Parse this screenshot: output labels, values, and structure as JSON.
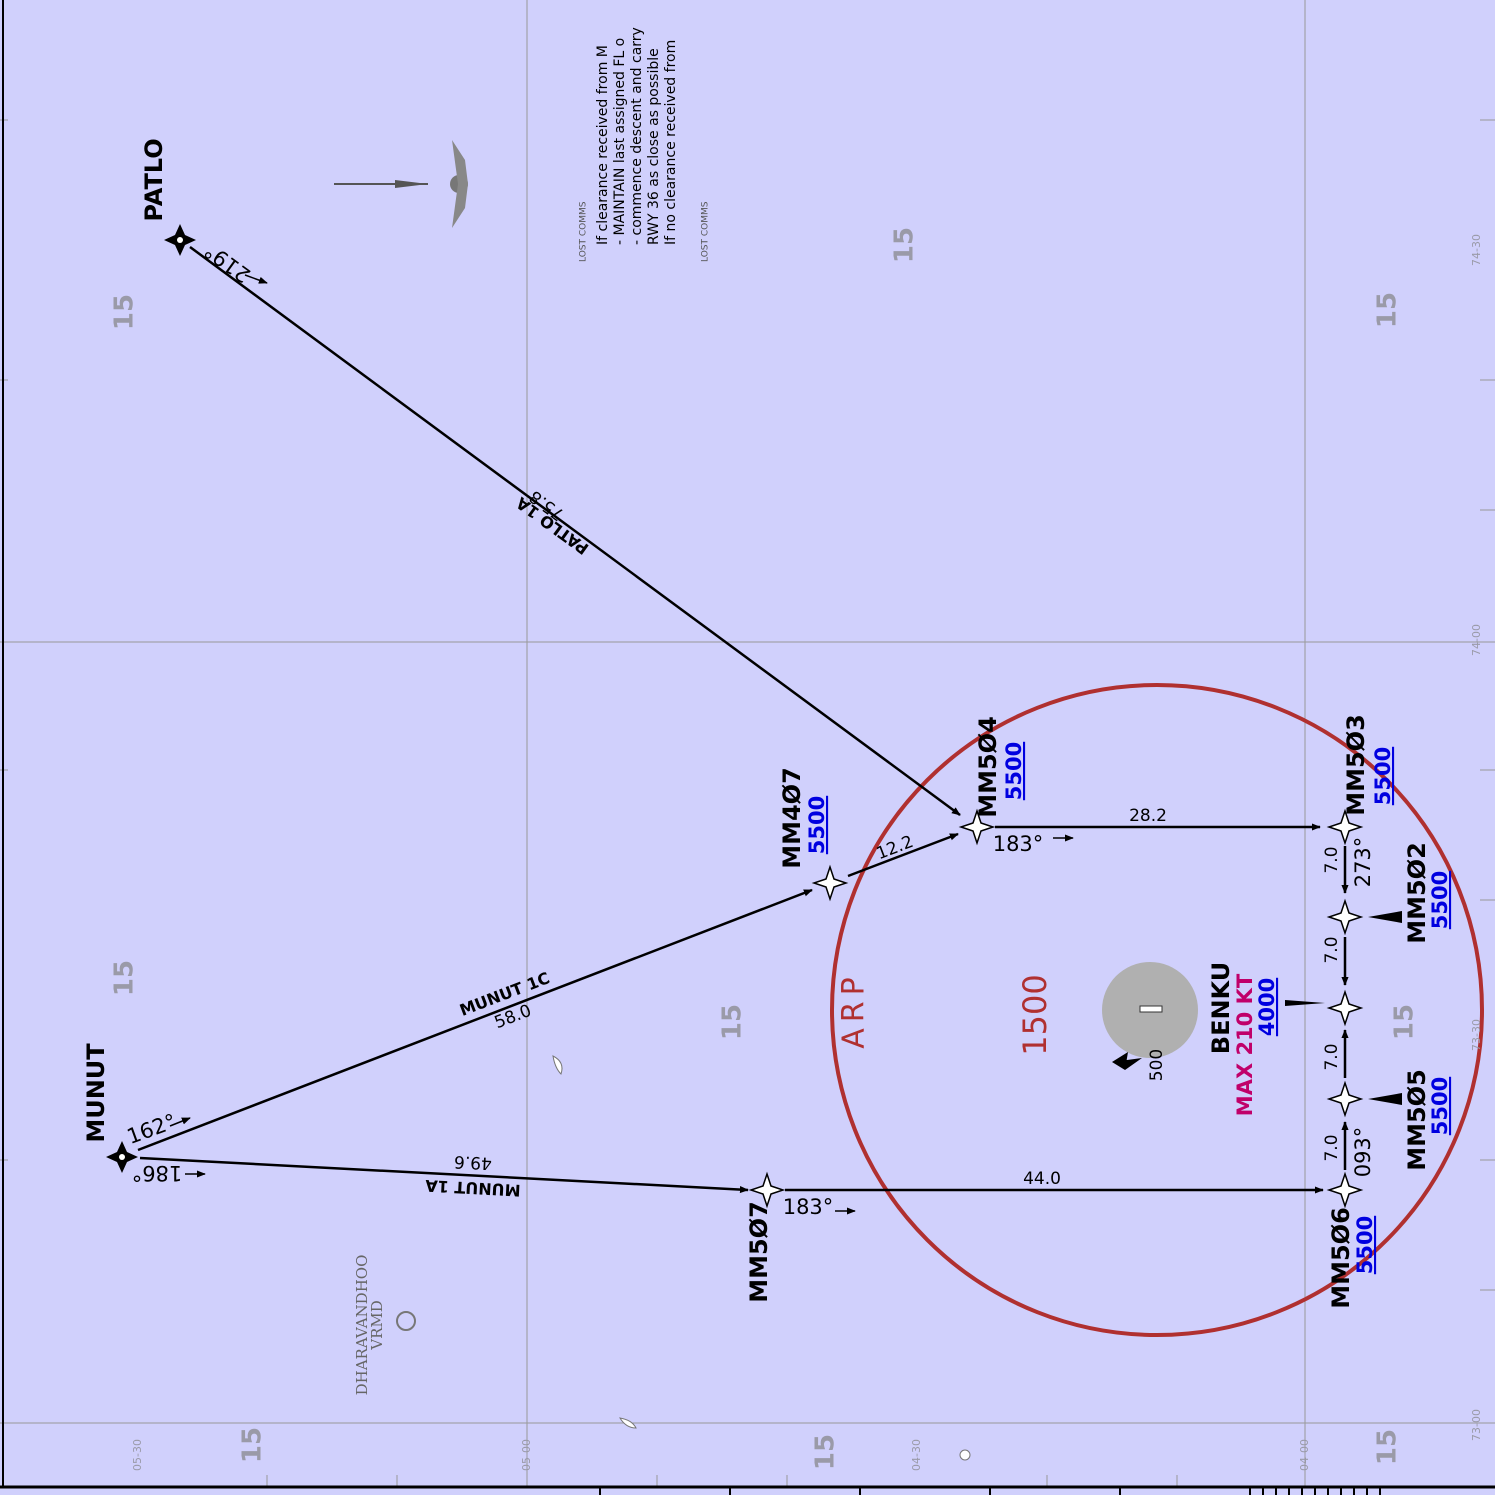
{
  "waypoints": [
    {
      "name": "PATLO"
    },
    {
      "name": "MUNUT"
    },
    {
      "name": "MM4Ø7",
      "altitude": "5500"
    },
    {
      "name": "MM5Ø4",
      "altitude": "5500"
    },
    {
      "name": "MM5Ø3",
      "altitude": "5500"
    },
    {
      "name": "MM5Ø2",
      "altitude": "5500"
    },
    {
      "name": "BENKU",
      "altitude": "4000",
      "speed": "MAX 210 KT"
    },
    {
      "name": "MM5Ø5",
      "altitude": "5500"
    },
    {
      "name": "MM5Ø6",
      "altitude": "5500"
    },
    {
      "name": "MM5Ø7"
    }
  ],
  "routes": [
    {
      "name": "PATLO 1A",
      "distance": "75.8",
      "bearing": "219°"
    },
    {
      "name": "MUNUT 1C",
      "distance": "58.0",
      "bearing": "162°"
    },
    {
      "name": "MUNUT 1A",
      "distance": "49.6",
      "bearing": "186°"
    }
  ],
  "legs": {
    "distances": [
      "12.2",
      "28.2",
      "44.0",
      "7.0",
      "7.0",
      "7.0",
      "7.0"
    ],
    "bearings": [
      "183°",
      "183°",
      "273°",
      "093°"
    ]
  },
  "msa_labels": [
    "15",
    "15",
    "15",
    "15",
    "15",
    "15",
    "15",
    "15",
    "15"
  ],
  "grid_labels": [
    "74-30",
    "74-00",
    "73-30",
    "73-00",
    "05-30",
    "05-00",
    "04-30",
    "04-00"
  ],
  "lost_comms": {
    "tag": "LOST COMMS",
    "lines": [
      "If clearance received from M",
      "- MAINTAIN last assigned FL o",
      "- commence descent and carry",
      "RWY 36 as close as possible",
      "If no clearance received from"
    ]
  },
  "airport": {
    "arp": "ARP",
    "msa": "1500",
    "elevation": "500",
    "aerodrome": "DHARAVANDHOO",
    "code": "VRMD"
  }
}
